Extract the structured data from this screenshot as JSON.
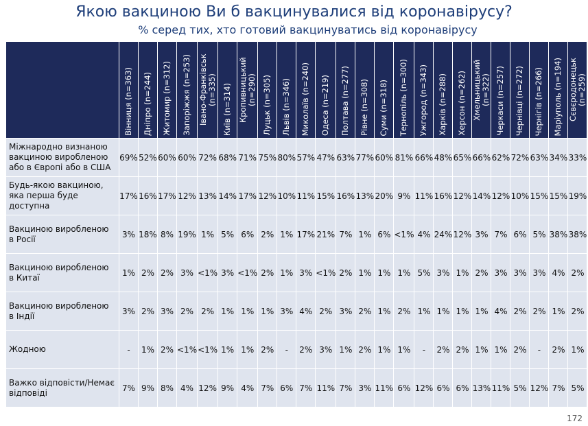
{
  "header": {
    "title": "Якою вакциною Ви б вакцинувалися від коронавірусу?",
    "subtitle": "% серед тих, хто готовий вакцинуватись від коронавірусу"
  },
  "table": {
    "columns": [
      "Вінниця (n=363)",
      "Дніпро (n=244)",
      "Житомир (n=312)",
      "Запоріжжя (n=253)",
      "Івано-Франківськ (n=335)",
      "Київ (n=314)",
      "Кропивницький (n=290)",
      "Луцьк (n=305)",
      "Львів (n=346)",
      "Миколаїв (n=240)",
      "Одеса (n=219)",
      "Полтава (n=277)",
      "Рівне (n=308)",
      "Суми (n=318)",
      "Тернопіль (n=300)",
      "Ужгород (n=343)",
      "Харків (n=288)",
      "Херсон (n=262)",
      "Хмельницький (n=322)",
      "Черкаси (n=257)",
      "Чернівці (n=272)",
      "Чернігів (n=266)",
      "Маріуполь (n=194)",
      "Сєвєродонецьк (n=259)"
    ],
    "rows": [
      {
        "label": "Міжнародно визнаною вакциною виробленою або в Європі або в США",
        "cells": [
          "69%",
          "52%",
          "60%",
          "60%",
          "72%",
          "68%",
          "71%",
          "75%",
          "80%",
          "57%",
          "47%",
          "63%",
          "77%",
          "60%",
          "81%",
          "66%",
          "48%",
          "65%",
          "66%",
          "62%",
          "72%",
          "63%",
          "34%",
          "33%"
        ]
      },
      {
        "label": "Будь-якою вакциною, яка перша буде доступна",
        "cells": [
          "17%",
          "16%",
          "17%",
          "12%",
          "13%",
          "14%",
          "17%",
          "12%",
          "10%",
          "11%",
          "15%",
          "16%",
          "13%",
          "20%",
          "9%",
          "11%",
          "16%",
          "12%",
          "14%",
          "12%",
          "10%",
          "15%",
          "15%",
          "19%"
        ]
      },
      {
        "label": "Вакциною виробленою в Росії",
        "cells": [
          "3%",
          "18%",
          "8%",
          "19%",
          "1%",
          "5%",
          "6%",
          "2%",
          "1%",
          "17%",
          "21%",
          "7%",
          "1%",
          "6%",
          "<1%",
          "4%",
          "24%",
          "12%",
          "3%",
          "7%",
          "6%",
          "5%",
          "38%",
          "38%"
        ]
      },
      {
        "label": "Вакциною виробленою в Китаї",
        "cells": [
          "1%",
          "2%",
          "2%",
          "3%",
          "<1%",
          "3%",
          "<1%",
          "2%",
          "1%",
          "3%",
          "<1%",
          "2%",
          "1%",
          "1%",
          "1%",
          "5%",
          "3%",
          "1%",
          "2%",
          "3%",
          "3%",
          "3%",
          "4%",
          "2%"
        ]
      },
      {
        "label": "Вакциною виробленою в Індії",
        "cells": [
          "3%",
          "2%",
          "3%",
          "2%",
          "2%",
          "1%",
          "1%",
          "1%",
          "3%",
          "4%",
          "2%",
          "3%",
          "2%",
          "1%",
          "2%",
          "1%",
          "1%",
          "1%",
          "1%",
          "4%",
          "2%",
          "2%",
          "1%",
          "2%"
        ]
      },
      {
        "label": "Жодною",
        "cells": [
          "-",
          "1%",
          "2%",
          "<1%",
          "<1%",
          "1%",
          "1%",
          "2%",
          "-",
          "2%",
          "3%",
          "1%",
          "2%",
          "1%",
          "1%",
          "-",
          "2%",
          "2%",
          "1%",
          "1%",
          "2%",
          "-",
          "2%",
          "1%"
        ]
      },
      {
        "label": "Важко відповісти/Немає відповіді",
        "cells": [
          "7%",
          "9%",
          "8%",
          "4%",
          "12%",
          "9%",
          "4%",
          "7%",
          "6%",
          "7%",
          "11%",
          "7%",
          "3%",
          "11%",
          "6%",
          "12%",
          "6%",
          "6%",
          "13%",
          "11%",
          "5%",
          "12%",
          "7%",
          "5%"
        ]
      }
    ]
  },
  "footer": {
    "page": "172"
  }
}
